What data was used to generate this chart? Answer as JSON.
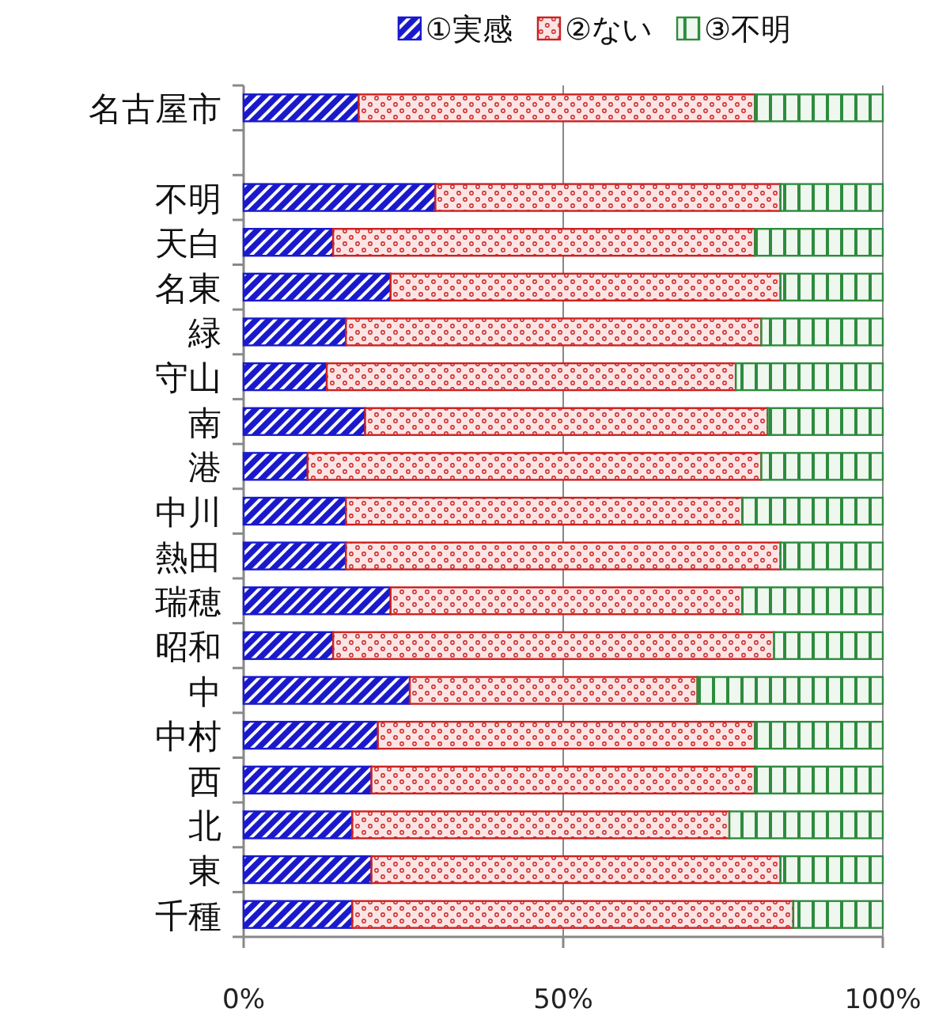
{
  "chart_data": {
    "type": "bar",
    "orientation": "horizontal",
    "stacked": true,
    "legend": "top",
    "grid": "x",
    "categories": [
      "名古屋市",
      null,
      "不明",
      "天白",
      "名東",
      "緑",
      "守山",
      "南",
      "港",
      "中川",
      "熱田",
      "瑞穂",
      "昭和",
      "中",
      "中村",
      "西",
      "北",
      "東",
      "千種"
    ],
    "series": [
      {
        "name": "①実感",
        "color": "#1a1acc",
        "values": [
          18,
          null,
          30,
          14,
          23,
          16,
          13,
          19,
          10,
          16,
          16,
          23,
          14,
          26,
          21,
          20,
          17,
          20,
          17
        ]
      },
      {
        "name": "②ない",
        "color": "#cc2222",
        "values": [
          62,
          null,
          54,
          66,
          61,
          65,
          64,
          63,
          71,
          62,
          68,
          55,
          69,
          45,
          59,
          60,
          59,
          64,
          69
        ]
      },
      {
        "name": "③不明",
        "color": "#2e8b3e",
        "values": [
          20,
          null,
          16,
          20,
          16,
          19,
          23,
          18,
          19,
          22,
          16,
          22,
          17,
          29,
          20,
          20,
          24,
          16,
          14
        ]
      }
    ],
    "xlim": [
      0,
      100
    ],
    "xticks": [
      {
        "value": 0,
        "label": "0%"
      },
      {
        "value": 50,
        "label": "50%"
      },
      {
        "value": 100,
        "label": "100%"
      }
    ]
  }
}
